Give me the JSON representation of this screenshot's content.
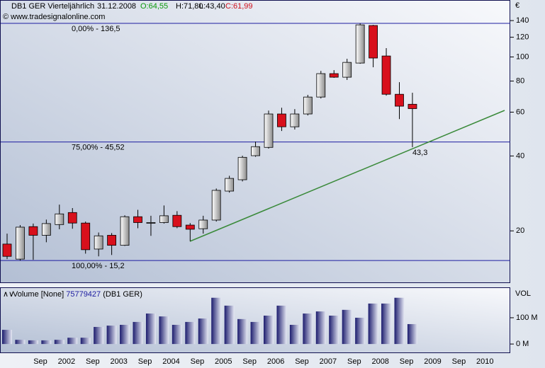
{
  "header": {
    "symbol": "DB1 GER Vierteljährlich",
    "date": "31.12.2008",
    "open": "O:64,55",
    "high": "H:71,80",
    "low": "L:43,40",
    "close": "C:61,99",
    "copyright": "© www.tradesignalonline.com"
  },
  "chart_data": [
    {
      "type": "candlestick",
      "categories": [
        null,
        null,
        null,
        null,
        null,
        null,
        null,
        null,
        null,
        null,
        null,
        null,
        null,
        null,
        null,
        null,
        null,
        null,
        null,
        null,
        null,
        null,
        null,
        null,
        null,
        null,
        null,
        null,
        null,
        null,
        null,
        null
      ],
      "open": [
        17.7,
        15.4,
        20.8,
        19.2,
        21.2,
        23.7,
        21.5,
        16.9,
        19.2,
        17.5,
        22.8,
        21.5,
        21.6,
        23.1,
        21.1,
        20.4,
        22.1,
        28.9,
        32.1,
        40.1,
        43.3,
        59.0,
        52.4,
        59.0,
        69.0,
        85.7,
        82.9,
        94.5,
        133.8,
        100.9,
        70.8,
        64.55
      ],
      "high": [
        19.5,
        21.1,
        21.4,
        22.2,
        25.5,
        24.7,
        21.8,
        19.7,
        19.6,
        23.1,
        24.3,
        23.0,
        25.3,
        24.0,
        21.5,
        23.0,
        29.6,
        33.3,
        40.1,
        45.7,
        60.9,
        62.5,
        61.7,
        70.4,
        87.9,
        88.5,
        98.3,
        136.5,
        134.6,
        108.5,
        79.2,
        71.8
      ],
      "low": [
        15.4,
        15.2,
        15.3,
        18.0,
        20.3,
        20.4,
        16.2,
        15.8,
        16.0,
        17.4,
        20.5,
        19.1,
        21.4,
        20.5,
        18.2,
        19.5,
        21.8,
        28.5,
        31.6,
        39.7,
        42.8,
        50.4,
        51.1,
        58.2,
        68.1,
        82.4,
        80.8,
        93.9,
        90.9,
        69.9,
        56.3,
        43.4
      ],
      "close": [
        15.8,
        20.7,
        19.2,
        21.4,
        23.4,
        21.5,
        16.8,
        19.1,
        17.5,
        22.8,
        21.6,
        21.6,
        23.0,
        20.8,
        20.3,
        22.1,
        29.1,
        32.5,
        39.5,
        43.6,
        59.0,
        52.4,
        59.0,
        69.0,
        85.7,
        82.9,
        95.1,
        134.6,
        99.0,
        70.8,
        63.4,
        61.99
      ],
      "up_color": "#e6e6e6",
      "down_color": "#d8101c",
      "log_scale": true,
      "ylim": [
        12.5,
        165
      ],
      "yticks": [
        20,
        40,
        60,
        80,
        100,
        120,
        140
      ],
      "y_unit": "€",
      "xtick_labels": [
        "Sep",
        "2002",
        "Sep",
        "2003",
        "Sep",
        "2004",
        "Sep",
        "2005",
        "Sep",
        "2006",
        "Sep",
        "2007",
        "Sep",
        "2008",
        "Sep",
        "2009",
        "Sep",
        "2010"
      ],
      "levels": [
        {
          "value": 136.5,
          "label": "0,00% - 136,5"
        },
        {
          "value": 45.52,
          "label": "75,00% - 45,52"
        },
        {
          "value": 15.2,
          "label": "100,00% - 15,2"
        }
      ],
      "level_color": "#1c1ca0",
      "annotations": [
        {
          "value": 43.3,
          "label": "43,3",
          "color": "#1e8a1e"
        }
      ]
    },
    {
      "type": "volume",
      "legend": "Volume [None]",
      "last_value": "75779427",
      "symbol": "(DB1 GER)",
      "axis_label": "VOL",
      "values": [
        54,
        16,
        14,
        14,
        16,
        24,
        24,
        65,
        70,
        73,
        84,
        116,
        105,
        73,
        84,
        97,
        176,
        146,
        95,
        84,
        108,
        146,
        73,
        116,
        124,
        108,
        130,
        100,
        154,
        154,
        176,
        75.779427
      ],
      "ylim": [
        -32,
        213
      ],
      "yticks": [
        {
          "value": 100,
          "label": "100 M"
        },
        {
          "value": 0,
          "label": "0 M"
        }
      ],
      "color": "#1c1c6e"
    }
  ]
}
